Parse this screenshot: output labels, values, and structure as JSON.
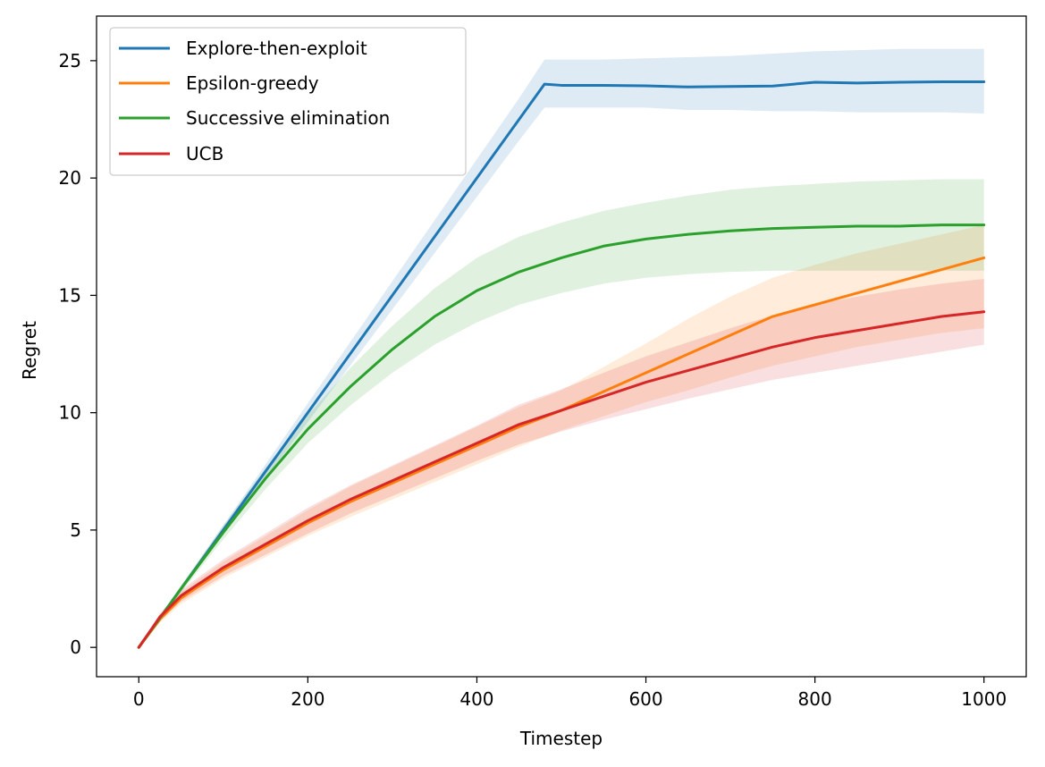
{
  "chart_data": {
    "type": "line",
    "title": "",
    "xlabel": "Timestep",
    "ylabel": "Regret",
    "xlim": [
      -50,
      1050
    ],
    "ylim": [
      -1.25,
      26.9
    ],
    "xticks": [
      0,
      200,
      400,
      600,
      800,
      1000
    ],
    "yticks": [
      0,
      5,
      10,
      15,
      20,
      25
    ],
    "grid": false,
    "legend_position": "top-left",
    "band_opacity": 0.15,
    "series": [
      {
        "name": "Explore-then-exploit",
        "color": "#1f77b4",
        "x": [
          0,
          50,
          100,
          150,
          200,
          250,
          300,
          350,
          400,
          450,
          480,
          500,
          550,
          600,
          650,
          700,
          750,
          800,
          850,
          900,
          950,
          1000
        ],
        "y": [
          0,
          2.5,
          5.0,
          7.5,
          10.0,
          12.5,
          15.0,
          17.5,
          20.0,
          22.5,
          24.0,
          23.95,
          23.95,
          23.93,
          23.88,
          23.9,
          23.92,
          24.08,
          24.05,
          24.08,
          24.1,
          24.1
        ],
        "lower": [
          0,
          2.4,
          4.8,
          7.2,
          9.6,
          12.0,
          14.4,
          16.8,
          19.2,
          21.6,
          23.0,
          23.0,
          23.0,
          23.0,
          22.9,
          22.9,
          22.85,
          22.85,
          22.8,
          22.8,
          22.8,
          22.75
        ],
        "upper": [
          0,
          2.6,
          5.2,
          7.8,
          10.4,
          13.0,
          15.6,
          18.2,
          20.8,
          23.4,
          25.05,
          25.05,
          25.05,
          25.1,
          25.15,
          25.2,
          25.3,
          25.4,
          25.45,
          25.5,
          25.5,
          25.5
        ]
      },
      {
        "name": "Epsilon-greedy",
        "color": "#ff7f0e",
        "x": [
          0,
          25,
          50,
          100,
          150,
          200,
          250,
          300,
          350,
          400,
          450,
          500,
          550,
          600,
          650,
          700,
          750,
          800,
          850,
          900,
          950,
          1000
        ],
        "y": [
          0,
          1.2,
          2.1,
          3.3,
          4.3,
          5.3,
          6.2,
          7.0,
          7.8,
          8.6,
          9.4,
          10.1,
          10.9,
          11.7,
          12.5,
          13.3,
          14.1,
          14.6,
          15.1,
          15.6,
          16.1,
          16.6
        ],
        "lower": [
          0,
          1.05,
          1.85,
          2.95,
          3.85,
          4.75,
          5.55,
          6.3,
          7.05,
          7.8,
          8.55,
          9.25,
          9.85,
          10.45,
          10.95,
          11.5,
          12.0,
          12.4,
          12.8,
          13.1,
          13.4,
          13.6
        ],
        "upper": [
          0,
          1.35,
          2.35,
          3.65,
          4.75,
          5.85,
          6.85,
          7.7,
          8.55,
          9.4,
          10.25,
          10.95,
          11.95,
          12.95,
          14.0,
          14.95,
          15.75,
          16.3,
          16.8,
          17.2,
          17.6,
          18.0
        ]
      },
      {
        "name": "Successive elimination",
        "color": "#2ca02c",
        "x": [
          0,
          50,
          100,
          150,
          200,
          250,
          300,
          350,
          400,
          450,
          500,
          550,
          600,
          650,
          700,
          750,
          800,
          850,
          900,
          950,
          1000
        ],
        "y": [
          0,
          2.5,
          4.9,
          7.2,
          9.3,
          11.1,
          12.7,
          14.1,
          15.2,
          16.0,
          16.6,
          17.1,
          17.4,
          17.6,
          17.75,
          17.85,
          17.9,
          17.95,
          17.95,
          18.0,
          18.0
        ],
        "lower": [
          0,
          2.35,
          4.6,
          6.75,
          8.7,
          10.3,
          11.7,
          12.9,
          13.85,
          14.6,
          15.1,
          15.5,
          15.75,
          15.9,
          16.0,
          16.05,
          16.05,
          16.05,
          16.05,
          16.05,
          16.05
        ],
        "upper": [
          0,
          2.65,
          5.2,
          7.65,
          9.9,
          11.9,
          13.7,
          15.3,
          16.6,
          17.5,
          18.1,
          18.6,
          18.95,
          19.25,
          19.5,
          19.65,
          19.75,
          19.85,
          19.9,
          19.95,
          19.95
        ]
      },
      {
        "name": "UCB",
        "color": "#d62728",
        "x": [
          0,
          25,
          50,
          100,
          150,
          200,
          250,
          300,
          350,
          400,
          450,
          500,
          550,
          600,
          650,
          700,
          750,
          800,
          850,
          900,
          950,
          1000
        ],
        "y": [
          0,
          1.3,
          2.2,
          3.4,
          4.4,
          5.4,
          6.3,
          7.1,
          7.9,
          8.7,
          9.5,
          10.1,
          10.7,
          11.3,
          11.8,
          12.3,
          12.8,
          13.2,
          13.5,
          13.8,
          14.1,
          14.3
        ],
        "lower": [
          0,
          1.15,
          1.95,
          3.05,
          3.95,
          4.85,
          5.7,
          6.45,
          7.2,
          7.95,
          8.65,
          9.2,
          9.7,
          10.15,
          10.6,
          11.0,
          11.4,
          11.7,
          12.0,
          12.3,
          12.6,
          12.9
        ],
        "upper": [
          0,
          1.45,
          2.45,
          3.75,
          4.85,
          5.95,
          6.9,
          7.75,
          8.6,
          9.45,
          10.35,
          11.0,
          11.7,
          12.4,
          13.0,
          13.6,
          14.15,
          14.6,
          14.95,
          15.25,
          15.5,
          15.7
        ]
      }
    ]
  }
}
